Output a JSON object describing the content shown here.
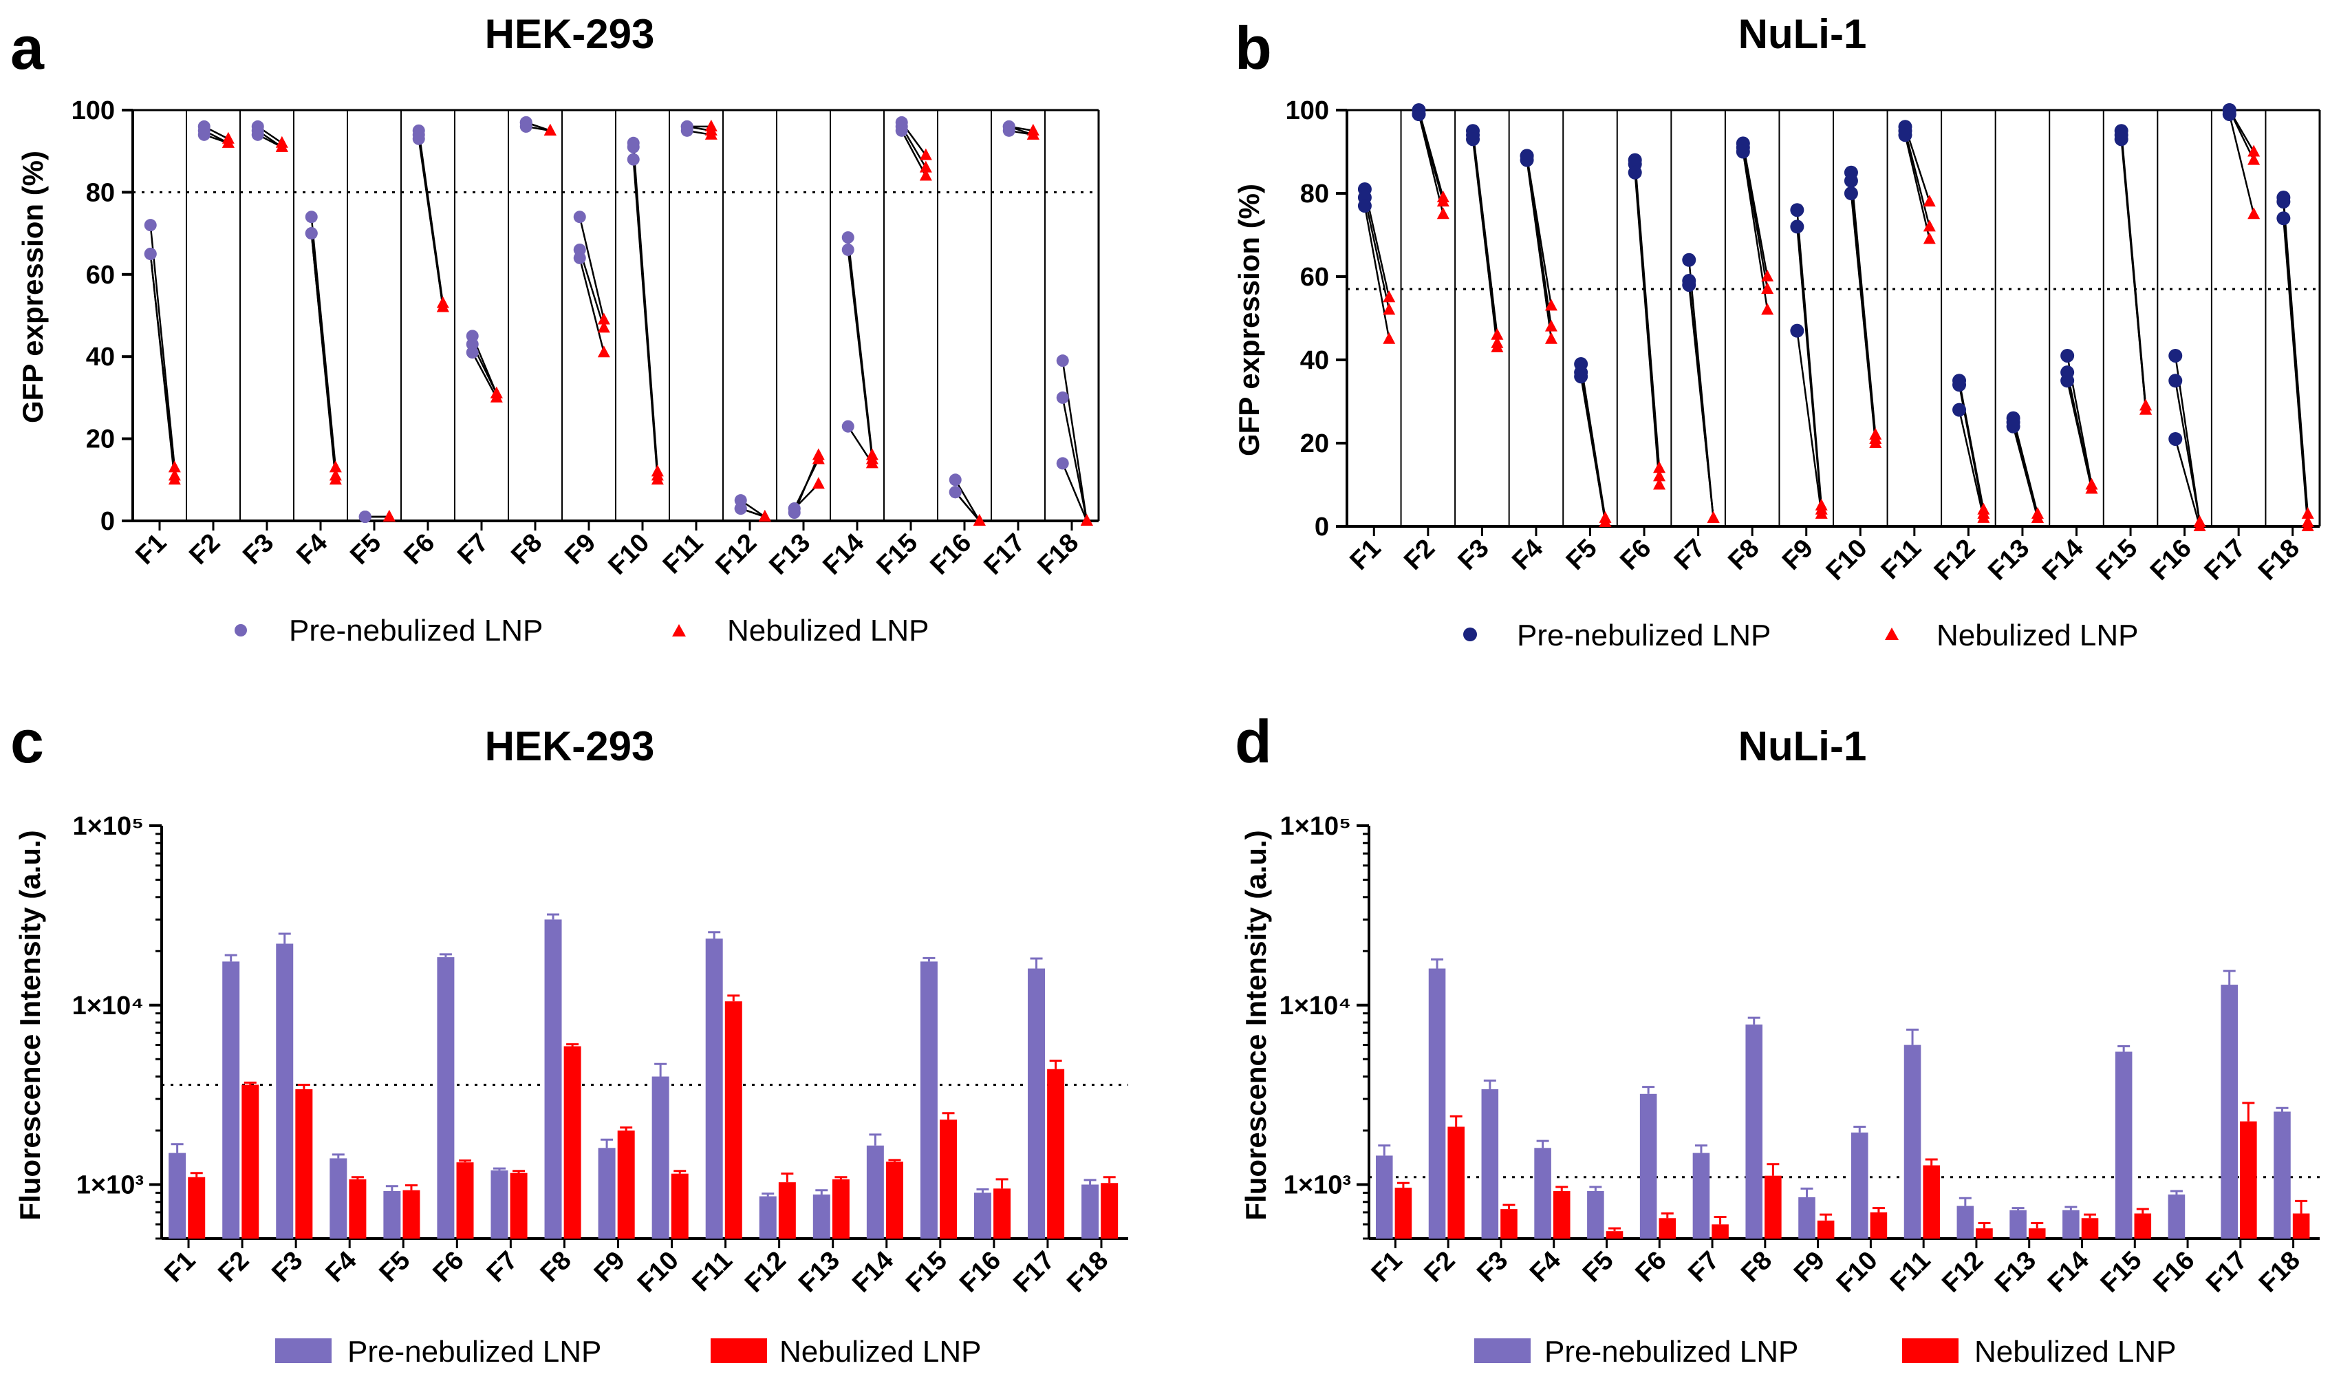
{
  "colors": {
    "pre_a": "#7566b8",
    "pre_b": "#1a237e",
    "pre_bar": "#7b6ebf",
    "neb": "#ff0000",
    "axis": "#000000"
  },
  "chart_data": [
    {
      "id": "a",
      "panel": "a",
      "type": "scatter",
      "title": "HEK-293",
      "ylabel": "GFP expression (%)",
      "ylim": [
        0,
        100
      ],
      "yticks": [
        "0",
        "20",
        "40",
        "60",
        "80",
        "100"
      ],
      "threshold": 80,
      "categories": [
        "F1",
        "F2",
        "F3",
        "F4",
        "F5",
        "F6",
        "F7",
        "F8",
        "F9",
        "F10",
        "F11",
        "F12",
        "F13",
        "F14",
        "F15",
        "F16",
        "F17",
        "F18"
      ],
      "legend": [
        "Pre-nebulized LNP",
        "Nebulized LNP"
      ],
      "series": [
        {
          "name": "Pre-nebulized LNP",
          "values": [
            [
              72,
              65,
              65
            ],
            [
              96,
              95,
              94
            ],
            [
              96,
              94,
              95
            ],
            [
              74,
              70,
              70
            ],
            [
              1,
              1,
              1
            ],
            [
              95,
              94,
              93
            ],
            [
              45,
              43,
              41
            ],
            [
              97,
              97,
              96
            ],
            [
              74,
              66,
              64
            ],
            [
              92,
              91,
              88
            ],
            [
              96,
              96,
              95
            ],
            [
              5,
              3,
              3
            ],
            [
              2,
              3,
              3
            ],
            [
              69,
              66,
              23
            ],
            [
              97,
              96,
              95
            ],
            [
              10,
              7,
              7
            ],
            [
              96,
              96,
              95
            ],
            [
              39,
              30,
              14
            ]
          ]
        },
        {
          "name": "Nebulized LNP",
          "values": [
            [
              13,
              11,
              10
            ],
            [
              93,
              92,
              92
            ],
            [
              92,
              91,
              91
            ],
            [
              13,
              11,
              10
            ],
            [
              1,
              1,
              1
            ],
            [
              53,
              52,
              52
            ],
            [
              31,
              31,
              30
            ],
            [
              95,
              95,
              95
            ],
            [
              49,
              47,
              41
            ],
            [
              12,
              11,
              10
            ],
            [
              96,
              95,
              94
            ],
            [
              1,
              1,
              1
            ],
            [
              16,
              15,
              9
            ],
            [
              16,
              15,
              14
            ],
            [
              89,
              86,
              84
            ],
            [
              0,
              0,
              0
            ],
            [
              95,
              94,
              94
            ],
            [
              0,
              0,
              0
            ]
          ]
        }
      ]
    },
    {
      "id": "b",
      "panel": "b",
      "type": "scatter",
      "title": "NuLi-1",
      "ylabel": "GFP expression (%)",
      "ylim": [
        0,
        100
      ],
      "yticks": [
        "0",
        "20",
        "40",
        "60",
        "80",
        "100"
      ],
      "threshold": 57,
      "categories": [
        "F1",
        "F2",
        "F3",
        "F4",
        "F5",
        "F6",
        "F7",
        "F8",
        "F9",
        "F10",
        "F11",
        "F12",
        "F13",
        "F14",
        "F15",
        "F16",
        "F17",
        "F18"
      ],
      "legend": [
        "Pre-nebulized LNP",
        "Nebulized LNP"
      ],
      "series": [
        {
          "name": "Pre-nebulized LNP",
          "values": [
            [
              81,
              79,
              77
            ],
            [
              100,
              99,
              99
            ],
            [
              95,
              94,
              93
            ],
            [
              89,
              89,
              88
            ],
            [
              39,
              37,
              36
            ],
            [
              88,
              87,
              85
            ],
            [
              64,
              59,
              58
            ],
            [
              92,
              91,
              90
            ],
            [
              76,
              72,
              47
            ],
            [
              85,
              83,
              80
            ],
            [
              96,
              95,
              94
            ],
            [
              35,
              34,
              28
            ],
            [
              26,
              25,
              24
            ],
            [
              41,
              37,
              35
            ],
            [
              95,
              94,
              93
            ],
            [
              41,
              35,
              21
            ],
            [
              100,
              100,
              99
            ],
            [
              79,
              78,
              74
            ]
          ]
        },
        {
          "name": "Nebulized LNP",
          "values": [
            [
              55,
              52,
              45
            ],
            [
              79,
              78,
              75
            ],
            [
              46,
              44,
              43
            ],
            [
              53,
              48,
              45
            ],
            [
              2,
              1,
              1
            ],
            [
              14,
              12,
              10
            ],
            [
              2,
              2,
              2
            ],
            [
              60,
              57,
              52
            ],
            [
              5,
              4,
              3
            ],
            [
              22,
              21,
              20
            ],
            [
              78,
              72,
              69
            ],
            [
              4,
              3,
              2
            ],
            [
              3,
              2,
              2
            ],
            [
              10,
              9,
              9
            ],
            [
              29,
              28,
              28
            ],
            [
              1,
              1,
              0
            ],
            [
              90,
              88,
              75
            ],
            [
              3,
              1,
              0
            ]
          ]
        }
      ]
    },
    {
      "id": "c",
      "panel": "c",
      "type": "bar",
      "title": "HEK-293",
      "ylabel": "Fluorescence Intensity (a.u.)",
      "yscale": "log",
      "ylim": [
        500,
        100000
      ],
      "yticks": [
        "1×10³",
        "1×10⁴",
        "1×10⁵"
      ],
      "threshold": 3600,
      "categories": [
        "F1",
        "F2",
        "F3",
        "F4",
        "F5",
        "F6",
        "F7",
        "F8",
        "F9",
        "F10",
        "F11",
        "F12",
        "F13",
        "F14",
        "F15",
        "F16",
        "F17",
        "F18"
      ],
      "legend": [
        "Pre-nebulized LNP",
        "Nebulized LNP"
      ],
      "series": [
        {
          "name": "Pre-nebulized LNP",
          "values": [
            1500,
            17500,
            22000,
            1400,
            920,
            18500,
            1200,
            30000,
            1600,
            4000,
            23500,
            860,
            880,
            1650,
            17500,
            900,
            16000,
            1000
          ],
          "errors": [
            180,
            1500,
            3000,
            70,
            60,
            700,
            30,
            2000,
            180,
            700,
            2000,
            30,
            50,
            250,
            800,
            40,
            2200,
            60
          ]
        },
        {
          "name": "Nebulized LNP",
          "values": [
            1100,
            3600,
            3400,
            1070,
            930,
            1330,
            1160,
            5900,
            2000,
            1150,
            10500,
            1030,
            1070,
            1340,
            2300,
            950,
            4400,
            1020
          ],
          "errors": [
            60,
            100,
            200,
            30,
            60,
            30,
            30,
            150,
            80,
            40,
            800,
            120,
            30,
            30,
            200,
            120,
            500,
            80
          ]
        }
      ]
    },
    {
      "id": "d",
      "panel": "d",
      "type": "bar",
      "title": "NuLi-1",
      "ylabel": "Fluorescence Intensity (a.u.)",
      "yscale": "log",
      "ylim": [
        500,
        100000
      ],
      "yticks": [
        "1×10³",
        "1×10⁴",
        "1×10⁵"
      ],
      "threshold": 1100,
      "categories": [
        "F1",
        "F2",
        "F3",
        "F4",
        "F5",
        "F6",
        "F7",
        "F8",
        "F9",
        "F10",
        "F11",
        "F12",
        "F13",
        "F14",
        "F15",
        "F16",
        "F17",
        "F18"
      ],
      "legend": [
        "Pre-nebulized LNP",
        "Nebulized LNP"
      ],
      "series": [
        {
          "name": "Pre-nebulized LNP",
          "values": [
            1450,
            16000,
            3400,
            1600,
            920,
            3200,
            1500,
            7800,
            850,
            1950,
            6000,
            760,
            720,
            720,
            5500,
            880,
            13000,
            2550
          ],
          "errors": [
            200,
            2000,
            400,
            150,
            50,
            300,
            150,
            700,
            100,
            150,
            1300,
            80,
            20,
            30,
            400,
            40,
            2500,
            120
          ]
        },
        {
          "name": "Nebulized LNP",
          "values": [
            960,
            2100,
            730,
            920,
            550,
            650,
            600,
            1120,
            630,
            700,
            1280,
            570,
            570,
            650,
            690,
            400,
            2250,
            690
          ],
          "errors": [
            60,
            300,
            40,
            50,
            20,
            40,
            60,
            180,
            50,
            40,
            100,
            40,
            40,
            30,
            40,
            0,
            600,
            120
          ]
        }
      ]
    }
  ]
}
